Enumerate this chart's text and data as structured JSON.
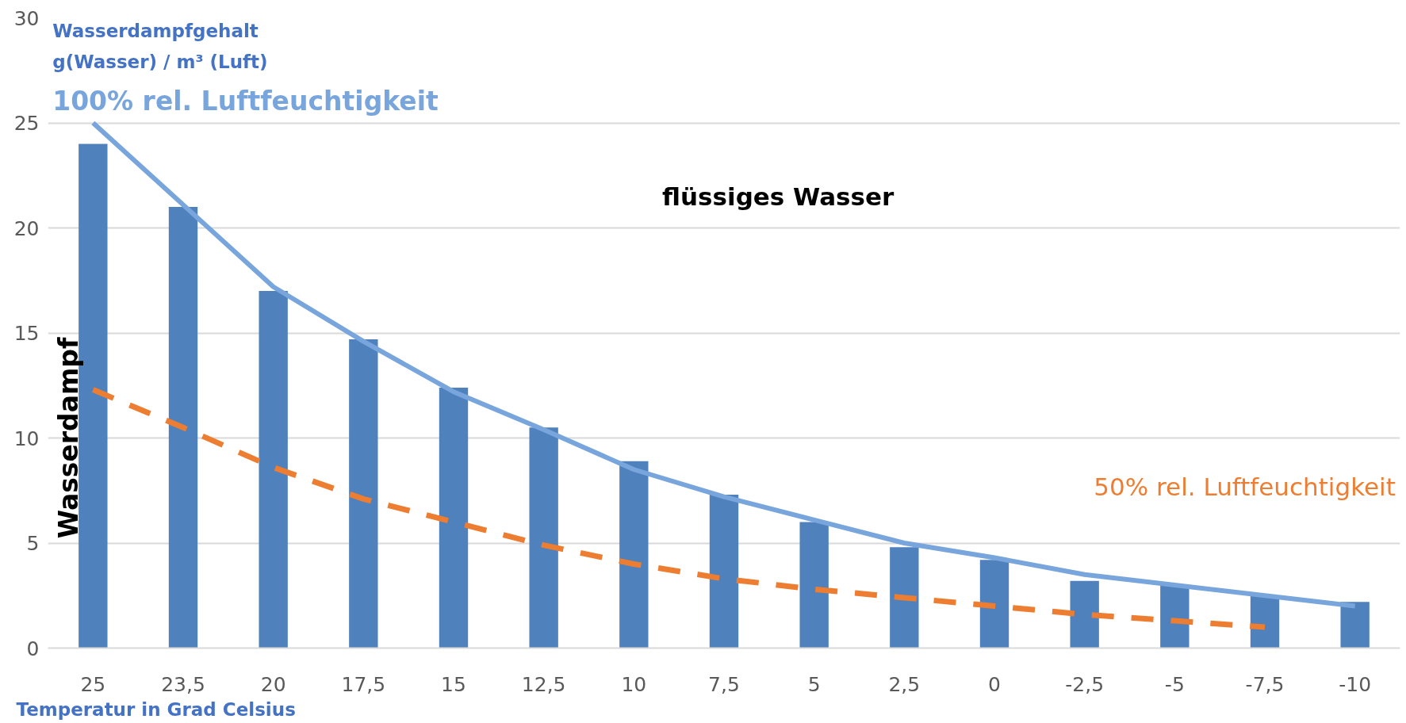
{
  "chart_data": {
    "type": "bar",
    "ylabel": "Wasserdampfgehalt\ng(Wasser) / m³ (Luft)",
    "xlabel": "Temperatur in Grad Celsius",
    "categories": [
      "25",
      "23,5",
      "20",
      "17,5",
      "15",
      "12,5",
      "10",
      "7,5",
      "5",
      "2,5",
      "0",
      "-2,5",
      "-5",
      "-7,5",
      "-10"
    ],
    "series": [
      {
        "type": "bar",
        "color": "#4f81bd",
        "values": [
          24,
          21,
          17,
          14.7,
          12.4,
          10.5,
          8.9,
          7.3,
          6.0,
          4.8,
          4.2,
          3.2,
          3.0,
          2.5,
          2.2
        ]
      },
      {
        "type": "line",
        "name": "100% rel. Luftfeuchtigkeit",
        "color": "#78a5dc",
        "line_style": "solid",
        "values": [
          25.0,
          21.1,
          17.2,
          14.6,
          12.2,
          10.4,
          8.5,
          7.2,
          6.1,
          5.0,
          4.3,
          3.5,
          3.0,
          2.5,
          2.0
        ]
      },
      {
        "type": "line",
        "name": "50% rel. Luftfeuchtigkeit",
        "color": "#ed7d31",
        "line_style": "dashed",
        "values": [
          12.3,
          10.5,
          8.6,
          7.1,
          6.0,
          4.9,
          4.0,
          3.3,
          2.8,
          2.4,
          2.0,
          1.6,
          1.3,
          1.0,
          null
        ]
      }
    ],
    "annotations": [
      "flüssiges Wasser",
      "Wasserdampf"
    ],
    "ylim": [
      0,
      30
    ],
    "yticks": [
      0,
      5,
      10,
      15,
      20,
      25,
      30
    ],
    "grid": "y",
    "legend": false
  }
}
